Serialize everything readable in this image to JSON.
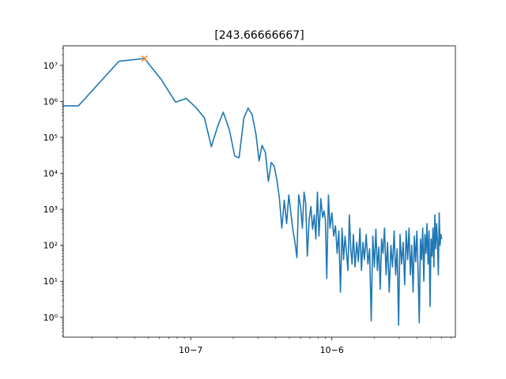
{
  "chart_data": {
    "type": "line",
    "title": "[243.66666667]",
    "xlabel": "",
    "ylabel": "",
    "x_scale": "log",
    "y_scale": "log",
    "xlim": [
      1.25e-08,
      7.5e-06
    ],
    "ylim": [
      0.28,
      35000000.0
    ],
    "x_ticks": [
      {
        "value": 1e-07,
        "label": "10−7"
      },
      {
        "value": 1e-06,
        "label": "10−6"
      }
    ],
    "y_ticks": [
      {
        "value": 1,
        "label": "10⁰"
      },
      {
        "value": 10,
        "label": "10¹"
      },
      {
        "value": 100,
        "label": "10²"
      },
      {
        "value": 1000,
        "label": "10³"
      },
      {
        "value": 10000,
        "label": "10⁴"
      },
      {
        "value": 100000,
        "label": "10⁵"
      },
      {
        "value": 1000000,
        "label": "10⁶"
      },
      {
        "value": 10000000,
        "label": "10⁷"
      }
    ],
    "grid": false,
    "series": [
      {
        "color": "#1f77b4",
        "marker": "none",
        "points": [
          [
            1.25e-08,
            750000
          ],
          [
            1.6e-08,
            750000
          ],
          [
            3.1e-08,
            13000000
          ],
          [
            4.7e-08,
            15500000
          ],
          [
            6.2e-08,
            4000000
          ],
          [
            7.8e-08,
            950000
          ],
          [
            9.3e-08,
            1200000
          ],
          [
            1.08e-07,
            700000
          ],
          [
            1.25e-07,
            350000
          ],
          [
            1.4e-07,
            55000
          ],
          [
            1.55e-07,
            200000
          ],
          [
            1.7e-07,
            500000
          ],
          [
            1.88e-07,
            160000
          ],
          [
            2.05e-07,
            30000
          ],
          [
            2.2e-07,
            27000
          ],
          [
            2.38e-07,
            350000
          ],
          [
            2.55e-07,
            650000
          ],
          [
            2.72e-07,
            430000
          ],
          [
            2.9e-07,
            120000
          ],
          [
            3.05e-07,
            22000
          ],
          [
            3.2e-07,
            60000
          ],
          [
            3.38e-07,
            38000
          ],
          [
            3.55e-07,
            6000
          ],
          [
            3.72e-07,
            20000
          ],
          [
            3.9e-07,
            16000
          ],
          [
            4.08e-07,
            6500
          ],
          [
            4.25e-07,
            2000
          ],
          [
            4.42e-07,
            300
          ],
          [
            4.6e-07,
            1800
          ],
          [
            4.78e-07,
            400
          ],
          [
            4.95e-07,
            2500
          ],
          [
            5.12e-07,
            800
          ],
          [
            5.3e-07,
            260
          ],
          [
            5.48e-07,
            120
          ],
          [
            5.65e-07,
            45
          ],
          [
            5.82e-07,
            2500
          ],
          [
            6e-07,
            1200
          ],
          [
            6.18e-07,
            300
          ],
          [
            6.35e-07,
            3000
          ],
          [
            6.52e-07,
            1500
          ],
          [
            6.7e-07,
            50
          ],
          [
            6.9e-07,
            500
          ],
          [
            7.1e-07,
            1200
          ],
          [
            7.3e-07,
            280
          ],
          [
            7.5e-07,
            700
          ],
          [
            7.7e-07,
            150
          ],
          [
            7.9e-07,
            3000
          ],
          [
            8.1e-07,
            180
          ],
          [
            8.35e-07,
            2000
          ],
          [
            8.6e-07,
            600
          ],
          [
            8.8e-07,
            900
          ],
          [
            9e-07,
            500
          ],
          [
            9.2e-07,
            12
          ],
          [
            9.45e-07,
            2500
          ],
          [
            9.7e-07,
            300
          ],
          [
            1e-06,
            800
          ],
          [
            1.03e-06,
            180
          ],
          [
            1.06e-06,
            350
          ],
          [
            1.09e-06,
            60
          ],
          [
            1.12e-06,
            250
          ],
          [
            1.15e-06,
            5
          ],
          [
            1.18e-06,
            300
          ],
          [
            1.21e-06,
            40
          ],
          [
            1.24e-06,
            180
          ],
          [
            1.27e-06,
            60
          ],
          [
            1.3e-06,
            20
          ],
          [
            1.33e-06,
            700
          ],
          [
            1.36e-06,
            80
          ],
          [
            1.39e-06,
            30
          ],
          [
            1.42e-06,
            200
          ],
          [
            1.46e-06,
            25
          ],
          [
            1.5e-06,
            120
          ],
          [
            1.54e-06,
            35
          ],
          [
            1.58e-06,
            300
          ],
          [
            1.62e-06,
            20
          ],
          [
            1.66e-06,
            120
          ],
          [
            1.7e-06,
            40
          ],
          [
            1.75e-06,
            200
          ],
          [
            1.8e-06,
            30
          ],
          [
            1.85e-06,
            80
          ],
          [
            1.9e-06,
            0.8
          ],
          [
            1.95e-06,
            180
          ],
          [
            2e-06,
            25
          ],
          [
            2.05e-06,
            280
          ],
          [
            2.1e-06,
            20
          ],
          [
            2.15e-06,
            90
          ],
          [
            2.2e-06,
            6
          ],
          [
            2.25e-06,
            150
          ],
          [
            2.3e-06,
            60
          ],
          [
            2.36e-06,
            300
          ],
          [
            2.42e-06,
            15
          ],
          [
            2.48e-06,
            120
          ],
          [
            2.55e-06,
            5
          ],
          [
            2.62e-06,
            100
          ],
          [
            2.69e-06,
            25
          ],
          [
            2.76e-06,
            250
          ],
          [
            2.83e-06,
            15
          ],
          [
            2.9e-06,
            80
          ],
          [
            2.97e-06,
            0.6
          ],
          [
            3.04e-06,
            200
          ],
          [
            3.12e-06,
            30
          ],
          [
            3.2e-06,
            120
          ],
          [
            3.28e-06,
            8
          ],
          [
            3.36e-06,
            250
          ],
          [
            3.44e-06,
            40
          ],
          [
            3.52e-06,
            300
          ],
          [
            3.6e-06,
            15
          ],
          [
            3.68e-06,
            100
          ],
          [
            3.76e-06,
            5
          ],
          [
            3.84e-06,
            180
          ],
          [
            3.92e-06,
            35
          ],
          [
            4e-06,
            250
          ],
          [
            4.08e-06,
            20
          ],
          [
            4.16e-06,
            0.7
          ],
          [
            4.24e-06,
            150
          ],
          [
            4.32e-06,
            40
          ],
          [
            4.4e-06,
            300
          ],
          [
            4.48e-06,
            10
          ],
          [
            4.56e-06,
            200
          ],
          [
            4.64e-06,
            60
          ],
          [
            4.72e-06,
            400
          ],
          [
            4.8e-06,
            30
          ],
          [
            4.88e-06,
            250
          ],
          [
            4.96e-06,
            2
          ],
          [
            5.04e-06,
            150
          ],
          [
            5.12e-06,
            50
          ],
          [
            5.2e-06,
            300
          ],
          [
            5.28e-06,
            25
          ],
          [
            5.36e-06,
            700
          ],
          [
            5.44e-06,
            80
          ],
          [
            5.52e-06,
            400
          ],
          [
            5.6e-06,
            120
          ],
          [
            5.68e-06,
            15
          ],
          [
            5.76e-06,
            800
          ],
          [
            5.84e-06,
            100
          ],
          [
            5.92e-06,
            200
          ],
          [
            6e-06,
            150
          ]
        ]
      },
      {
        "color": "#ff7f0e",
        "marker": "x",
        "line": "none",
        "points": [
          [
            4.7e-08,
            15500000
          ]
        ]
      }
    ]
  }
}
